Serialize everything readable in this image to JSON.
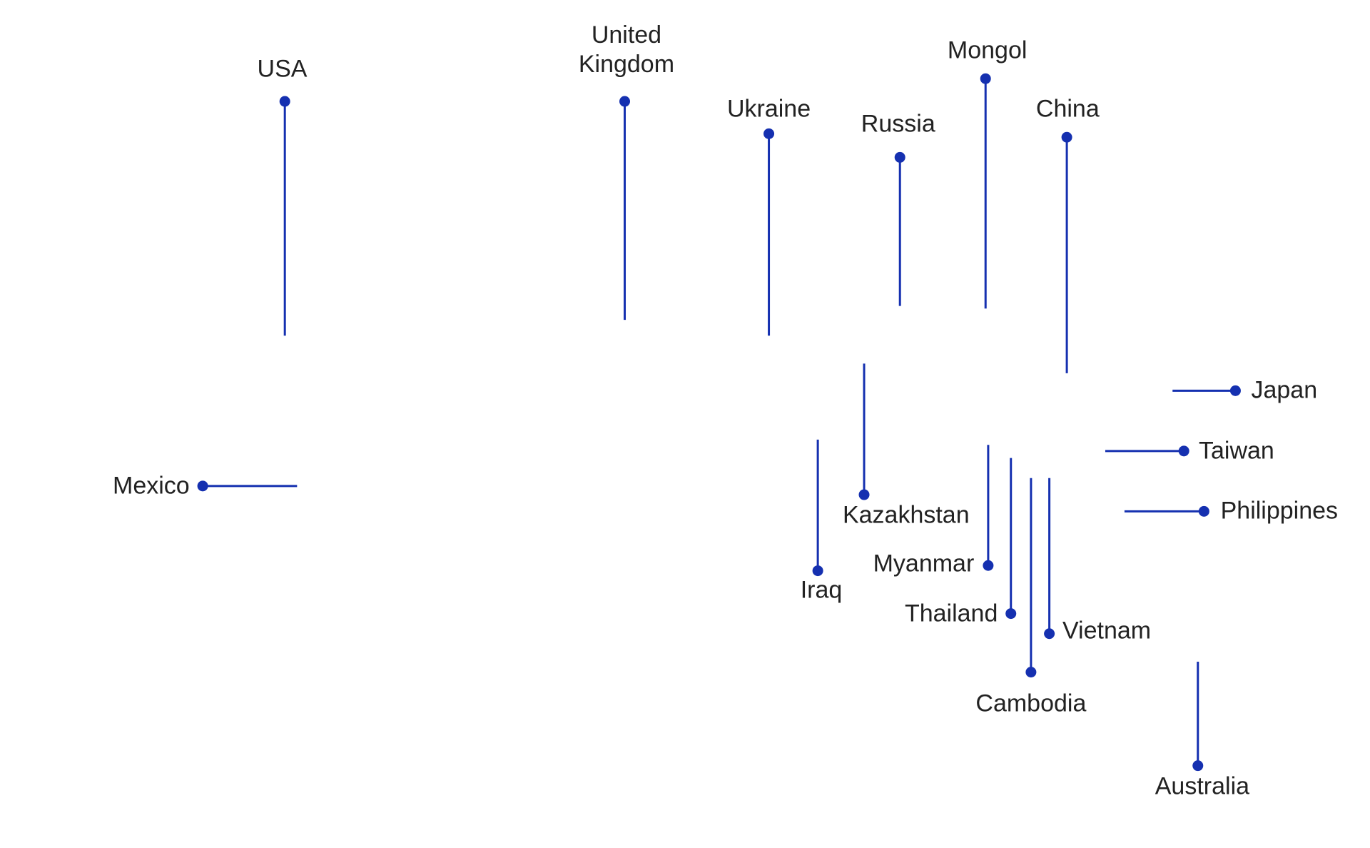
{
  "labels": [
    "USA",
    "United Kingdom",
    "Ukraine",
    "Russia",
    "Mongol",
    "China",
    "Japan",
    "Taiwan",
    "Philippines",
    "Mexico",
    "Kazakhstan",
    "Iraq",
    "Myanmar",
    "Thailand",
    "Vietnam",
    "Cambodia",
    "Australia"
  ]
}
